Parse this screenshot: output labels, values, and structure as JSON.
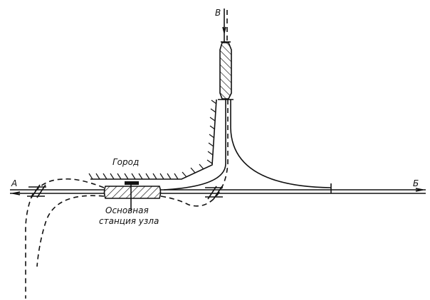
{
  "labels": {
    "point_a": "А",
    "point_b": "Б",
    "point_v": "В",
    "city": "Город",
    "station_line1": "Основная",
    "station_line2": "станция узла"
  },
  "colors": {
    "ink": "#111111",
    "background": "#ffffff"
  }
}
